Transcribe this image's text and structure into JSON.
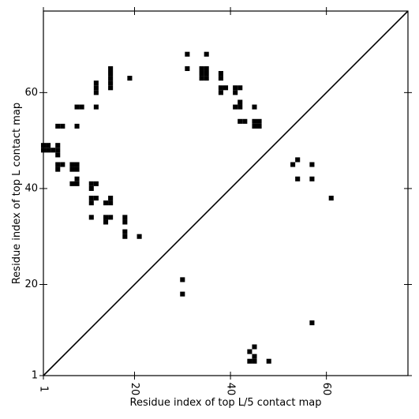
{
  "chart_data": {
    "type": "heatmap",
    "title": "",
    "xlabel": "Residue index of top L/5 contact map",
    "ylabel": "Residue index of top L contact map",
    "xlim": [
      1,
      77
    ],
    "ylim": [
      1,
      77
    ],
    "xticks": [
      1,
      20,
      40,
      60
    ],
    "yticks": [
      1,
      20,
      40,
      60
    ],
    "xtick_labels": [
      "1",
      "20",
      "40",
      "60"
    ],
    "ytick_labels": [
      "1",
      "20",
      "40",
      "60"
    ],
    "diagonal": true,
    "grid": false,
    "cell_color": "#000000",
    "upper_triangle_contacts": [
      [
        1,
        48
      ],
      [
        1,
        49
      ],
      [
        2,
        48
      ],
      [
        2,
        49
      ],
      [
        3,
        48
      ],
      [
        4,
        48
      ],
      [
        4,
        49
      ],
      [
        4,
        47
      ],
      [
        4,
        44
      ],
      [
        4,
        45
      ],
      [
        5,
        45
      ],
      [
        4,
        53
      ],
      [
        5,
        53
      ],
      [
        7,
        41
      ],
      [
        7,
        44
      ],
      [
        7,
        45
      ],
      [
        8,
        41
      ],
      [
        8,
        42
      ],
      [
        8,
        44
      ],
      [
        8,
        45
      ],
      [
        8,
        53
      ],
      [
        8,
        57
      ],
      [
        9,
        57
      ],
      [
        11,
        34
      ],
      [
        11,
        37
      ],
      [
        11,
        38
      ],
      [
        11,
        40
      ],
      [
        11,
        41
      ],
      [
        12,
        38
      ],
      [
        12,
        41
      ],
      [
        12,
        57
      ],
      [
        12,
        60
      ],
      [
        12,
        61
      ],
      [
        12,
        62
      ],
      [
        14,
        33
      ],
      [
        14,
        34
      ],
      [
        14,
        37
      ],
      [
        15,
        34
      ],
      [
        15,
        37
      ],
      [
        15,
        38
      ],
      [
        15,
        61
      ],
      [
        15,
        62
      ],
      [
        15,
        63
      ],
      [
        15,
        64
      ],
      [
        15,
        65
      ],
      [
        18,
        30
      ],
      [
        18,
        31
      ],
      [
        18,
        33
      ],
      [
        18,
        34
      ],
      [
        19,
        63
      ],
      [
        21,
        30
      ],
      [
        31,
        65
      ],
      [
        31,
        68
      ],
      [
        34,
        63
      ],
      [
        34,
        64
      ],
      [
        34,
        65
      ],
      [
        35,
        63
      ],
      [
        35,
        64
      ],
      [
        35,
        65
      ],
      [
        35,
        68
      ],
      [
        38,
        60
      ],
      [
        38,
        61
      ],
      [
        38,
        63
      ],
      [
        38,
        64
      ],
      [
        39,
        61
      ],
      [
        41,
        57
      ],
      [
        41,
        60
      ],
      [
        41,
        61
      ],
      [
        42,
        57
      ],
      [
        42,
        58
      ],
      [
        42,
        61
      ],
      [
        42,
        54
      ],
      [
        43,
        54
      ],
      [
        45,
        53
      ],
      [
        45,
        54
      ],
      [
        45,
        57
      ],
      [
        46,
        53
      ],
      [
        46,
        54
      ],
      [
        53,
        45
      ],
      [
        54,
        42
      ],
      [
        54,
        46
      ],
      [
        57,
        42
      ],
      [
        57,
        45
      ],
      [
        61,
        38
      ]
    ],
    "lower_triangle_contacts": [
      [
        30,
        18
      ],
      [
        30,
        21
      ],
      [
        57,
        12
      ],
      [
        44,
        4
      ],
      [
        45,
        4
      ],
      [
        45,
        5
      ],
      [
        45,
        7
      ],
      [
        44,
        6
      ],
      [
        48,
        4
      ]
    ]
  }
}
